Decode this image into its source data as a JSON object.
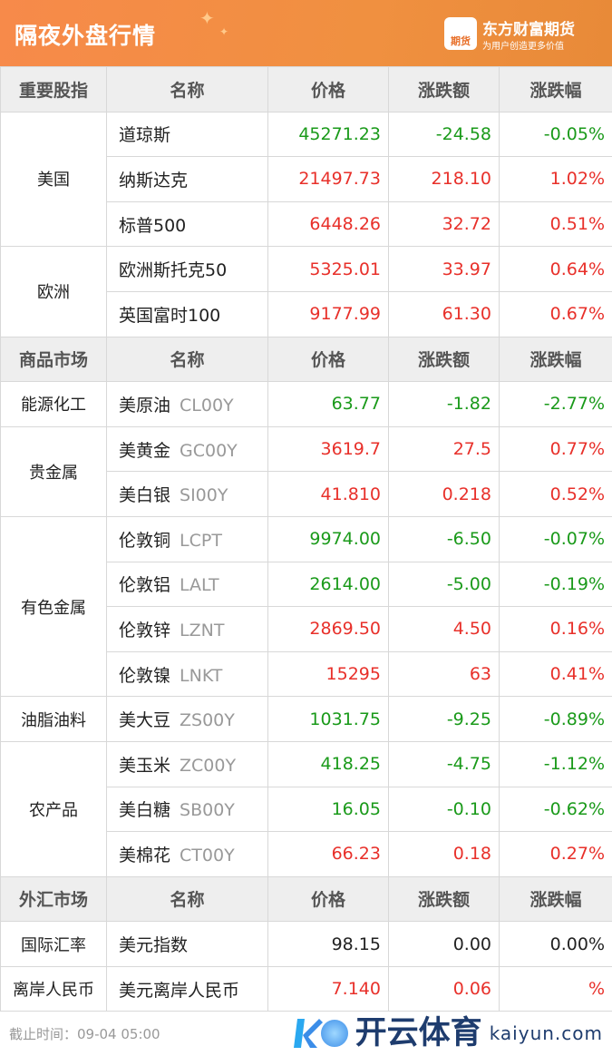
{
  "header": {
    "title": "隔夜外盘行情",
    "brand": "东方财富期货",
    "slogan": "为用户创造更多价值",
    "logo_text": "期货"
  },
  "sections": [
    {
      "headers": [
        "重要股指",
        "名称",
        "价格",
        "涨跌额",
        "涨跌幅"
      ],
      "groups": [
        {
          "category": "美国",
          "rows": [
            {
              "name": "道琼斯",
              "code": "",
              "price": "45271.23",
              "change": "-24.58",
              "pct": "-0.05%",
              "dir": "down"
            },
            {
              "name": "纳斯达克",
              "code": "",
              "price": "21497.73",
              "change": "218.10",
              "pct": "1.02%",
              "dir": "up"
            },
            {
              "name": "标普500",
              "code": "",
              "price": "6448.26",
              "change": "32.72",
              "pct": "0.51%",
              "dir": "up"
            }
          ]
        },
        {
          "category": "欧洲",
          "rows": [
            {
              "name": "欧洲斯托克50",
              "code": "",
              "price": "5325.01",
              "change": "33.97",
              "pct": "0.64%",
              "dir": "up"
            },
            {
              "name": "英国富时100",
              "code": "",
              "price": "9177.99",
              "change": "61.30",
              "pct": "0.67%",
              "dir": "up"
            }
          ]
        }
      ]
    },
    {
      "headers": [
        "商品市场",
        "名称",
        "价格",
        "涨跌额",
        "涨跌幅"
      ],
      "groups": [
        {
          "category": "能源化工",
          "rows": [
            {
              "name": "美原油",
              "code": "CL00Y",
              "price": "63.77",
              "change": "-1.82",
              "pct": "-2.77%",
              "dir": "down"
            }
          ]
        },
        {
          "category": "贵金属",
          "rows": [
            {
              "name": "美黄金",
              "code": "GC00Y",
              "price": "3619.7",
              "change": "27.5",
              "pct": "0.77%",
              "dir": "up"
            },
            {
              "name": "美白银",
              "code": "SI00Y",
              "price": "41.810",
              "change": "0.218",
              "pct": "0.52%",
              "dir": "up"
            }
          ]
        },
        {
          "category": "有色金属",
          "rows": [
            {
              "name": "伦敦铜",
              "code": "LCPT",
              "price": "9974.00",
              "change": "-6.50",
              "pct": "-0.07%",
              "dir": "down"
            },
            {
              "name": "伦敦铝",
              "code": "LALT",
              "price": "2614.00",
              "change": "-5.00",
              "pct": "-0.19%",
              "dir": "down"
            },
            {
              "name": "伦敦锌",
              "code": "LZNT",
              "price": "2869.50",
              "change": "4.50",
              "pct": "0.16%",
              "dir": "up"
            },
            {
              "name": "伦敦镍",
              "code": "LNKT",
              "price": "15295",
              "change": "63",
              "pct": "0.41%",
              "dir": "up"
            }
          ]
        },
        {
          "category": "油脂油料",
          "rows": [
            {
              "name": "美大豆",
              "code": "ZS00Y",
              "price": "1031.75",
              "change": "-9.25",
              "pct": "-0.89%",
              "dir": "down"
            }
          ]
        },
        {
          "category": "农产品",
          "rows": [
            {
              "name": "美玉米",
              "code": "ZC00Y",
              "price": "418.25",
              "change": "-4.75",
              "pct": "-1.12%",
              "dir": "down"
            },
            {
              "name": "美白糖",
              "code": "SB00Y",
              "price": "16.05",
              "change": "-0.10",
              "pct": "-0.62%",
              "dir": "down"
            },
            {
              "name": "美棉花",
              "code": "CT00Y",
              "price": "66.23",
              "change": "0.18",
              "pct": "0.27%",
              "dir": "up"
            }
          ]
        }
      ]
    },
    {
      "headers": [
        "外汇市场",
        "名称",
        "价格",
        "涨跌额",
        "涨跌幅"
      ],
      "groups": [
        {
          "category": "国际汇率",
          "rows": [
            {
              "name": "美元指数",
              "code": "",
              "price": "98.15",
              "change": "0.00",
              "pct": "0.00%",
              "dir": "flat"
            }
          ]
        },
        {
          "category": "离岸人民币",
          "rows": [
            {
              "name": "美元离岸人民币",
              "code": "",
              "price": "7.140",
              "change": "0.06",
              "pct": "%",
              "dir": "up"
            }
          ]
        }
      ]
    }
  ],
  "footer": {
    "cutoff": "截止时间：09-04 05:00"
  },
  "watermark": {
    "cn": "开云体育",
    "en": "kaiyun.com"
  },
  "colors": {
    "up": "#e8302a",
    "down": "#1a9a1a",
    "banner": "#f08a45"
  }
}
